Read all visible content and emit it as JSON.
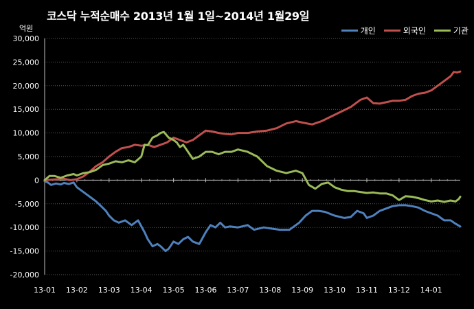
{
  "chart_data": {
    "type": "line",
    "title": "코스닥  누적순매수 2013년 1월 1일~2014년 1월29일",
    "unit_label": "억원",
    "ylim": [
      -20000,
      30000
    ],
    "y_ticks": [
      "30,000",
      "25,000",
      "20,000",
      "15,000",
      "10,000",
      "5,000",
      "0",
      "-5,000",
      "-10,000",
      "-15,000",
      "-20,000"
    ],
    "y_tick_values": [
      30000,
      25000,
      20000,
      15000,
      10000,
      5000,
      0,
      -5000,
      -10000,
      -15000,
      -20000
    ],
    "x_ticks": [
      "13-01",
      "13-02",
      "13-03",
      "13-04",
      "13-05",
      "13-06",
      "13-07",
      "13-08",
      "13-09",
      "13-10",
      "13-11",
      "13-12",
      "14-01"
    ],
    "xlim": [
      0,
      12.9
    ],
    "legend_position": "top-right",
    "grid": true,
    "series": [
      {
        "name": "개인",
        "color": "#4F81BD",
        "x": [
          0,
          0.1,
          0.2,
          0.35,
          0.5,
          0.6,
          0.75,
          0.9,
          1.0,
          1.2,
          1.4,
          1.6,
          1.75,
          1.9,
          2.0,
          2.15,
          2.3,
          2.5,
          2.7,
          2.9,
          3.1,
          3.2,
          3.35,
          3.5,
          3.6,
          3.75,
          3.85,
          4.0,
          4.15,
          4.3,
          4.45,
          4.6,
          4.8,
          5.0,
          5.15,
          5.3,
          5.45,
          5.6,
          5.75,
          6.0,
          6.3,
          6.5,
          6.8,
          7.0,
          7.3,
          7.6,
          7.9,
          8.1,
          8.3,
          8.5,
          8.7,
          9.0,
          9.3,
          9.5,
          9.7,
          9.9,
          10.0,
          10.2,
          10.4,
          10.6,
          10.8,
          11.0,
          11.2,
          11.4,
          11.6,
          11.8,
          12.0,
          12.2,
          12.4,
          12.6,
          12.75,
          12.9
        ],
        "values": [
          -200,
          -500,
          -1000,
          -700,
          -900,
          -600,
          -800,
          -500,
          -1500,
          -2500,
          -3500,
          -4500,
          -5500,
          -6500,
          -7500,
          -8500,
          -9000,
          -8500,
          -9500,
          -8500,
          -11000,
          -12500,
          -14000,
          -13500,
          -14000,
          -15000,
          -14500,
          -13000,
          -13500,
          -12500,
          -12000,
          -13000,
          -13500,
          -11000,
          -9500,
          -10000,
          -9000,
          -10000,
          -9800,
          -10000,
          -9500,
          -10500,
          -10000,
          -10200,
          -10500,
          -10500,
          -9000,
          -7500,
          -6500,
          -6500,
          -6700,
          -7500,
          -8000,
          -7800,
          -6500,
          -7000,
          -8000,
          -7500,
          -6500,
          -6000,
          -5500,
          -5300,
          -5300,
          -5500,
          -5800,
          -6500,
          -7000,
          -7500,
          -8500,
          -8500,
          -9200,
          -9800
        ]
      },
      {
        "name": "외국인",
        "color": "#C0504D",
        "x": [
          0,
          0.2,
          0.4,
          0.6,
          0.8,
          1.0,
          1.2,
          1.4,
          1.6,
          1.8,
          2.0,
          2.2,
          2.4,
          2.6,
          2.8,
          3.0,
          3.2,
          3.4,
          3.6,
          3.8,
          4.0,
          4.2,
          4.4,
          4.6,
          4.8,
          5.0,
          5.2,
          5.4,
          5.6,
          5.8,
          6.0,
          6.3,
          6.6,
          6.9,
          7.2,
          7.5,
          7.8,
          8.0,
          8.3,
          8.6,
          8.9,
          9.2,
          9.5,
          9.8,
          10.0,
          10.2,
          10.4,
          10.6,
          10.8,
          11.0,
          11.2,
          11.4,
          11.6,
          11.8,
          12.0,
          12.2,
          12.4,
          12.6,
          12.7,
          12.8,
          12.9
        ],
        "values": [
          0,
          100,
          200,
          300,
          0,
          200,
          800,
          1800,
          3000,
          3800,
          5000,
          6000,
          6800,
          7000,
          7500,
          7300,
          7500,
          7000,
          7500,
          8000,
          9000,
          8500,
          8000,
          8500,
          9500,
          10500,
          10300,
          10000,
          9800,
          9700,
          10000,
          10000,
          10300,
          10500,
          11000,
          12000,
          12500,
          12200,
          11800,
          12500,
          13500,
          14500,
          15500,
          17000,
          17500,
          16300,
          16200,
          16500,
          16800,
          16800,
          17000,
          17800,
          18300,
          18500,
          19000,
          20000,
          21000,
          22000,
          22900,
          22800,
          23000
        ]
      },
      {
        "name": "기관",
        "color": "#9BBB59",
        "x": [
          0,
          0.15,
          0.3,
          0.5,
          0.7,
          0.9,
          1.0,
          1.2,
          1.4,
          1.6,
          1.8,
          2.0,
          2.2,
          2.4,
          2.6,
          2.8,
          3.0,
          3.1,
          3.2,
          3.35,
          3.5,
          3.6,
          3.7,
          3.85,
          4.0,
          4.1,
          4.2,
          4.3,
          4.4,
          4.6,
          4.8,
          5.0,
          5.1,
          5.2,
          5.4,
          5.6,
          5.8,
          6.0,
          6.3,
          6.6,
          6.9,
          7.2,
          7.5,
          7.8,
          8.0,
          8.2,
          8.4,
          8.6,
          8.8,
          9.0,
          9.2,
          9.4,
          9.6,
          9.8,
          10.0,
          10.2,
          10.4,
          10.6,
          10.8,
          11.0,
          11.2,
          11.4,
          11.6,
          11.8,
          12.0,
          12.2,
          12.4,
          12.6,
          12.75,
          12.85,
          12.9
        ],
        "values": [
          0,
          900,
          900,
          500,
          1000,
          1300,
          1000,
          1500,
          1700,
          2200,
          3200,
          3500,
          4000,
          3800,
          4200,
          3800,
          5000,
          7500,
          7400,
          9000,
          9500,
          10000,
          10200,
          9000,
          8500,
          8000,
          7000,
          7500,
          6500,
          4500,
          5000,
          6000,
          6000,
          6000,
          5500,
          6000,
          6000,
          6500,
          6000,
          5000,
          3000,
          2000,
          1500,
          2000,
          1500,
          -1000,
          -1800,
          -800,
          -500,
          -1500,
          -2000,
          -2300,
          -2300,
          -2500,
          -2700,
          -2600,
          -2800,
          -2800,
          -3200,
          -4200,
          -3400,
          -3500,
          -3800,
          -4200,
          -4500,
          -4300,
          -4600,
          -4300,
          -4500,
          -4000,
          -3500
        ]
      }
    ]
  }
}
